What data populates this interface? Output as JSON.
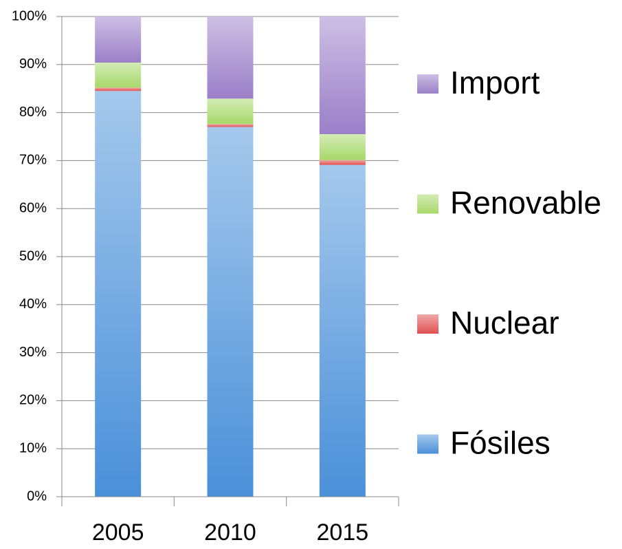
{
  "chart_data": {
    "type": "bar",
    "stacked": true,
    "categories": [
      "2005",
      "2010",
      "2015"
    ],
    "series": [
      {
        "name": "Fósiles",
        "color": "#4a90d9",
        "values": [
          84.5,
          77,
          69.1
        ]
      },
      {
        "name": "Nuclear",
        "color": "#e05050",
        "values": [
          0.7,
          0.6,
          1.0
        ]
      },
      {
        "name": "Renovable",
        "color": "#a8d86a",
        "values": [
          5.2,
          5.3,
          5.4
        ]
      },
      {
        "name": "Import",
        "color": "#9b7fc8",
        "values": [
          9.6,
          17.1,
          24.5
        ]
      }
    ],
    "ylim": [
      0,
      100
    ],
    "yticks": [
      {
        "value": 0,
        "label": "0%"
      },
      {
        "value": 10,
        "label": "10%"
      },
      {
        "value": 20,
        "label": "20%"
      },
      {
        "value": 30,
        "label": "30%"
      },
      {
        "value": 40,
        "label": "40%"
      },
      {
        "value": 50,
        "label": "50%"
      },
      {
        "value": 60,
        "label": "60%"
      },
      {
        "value": 70,
        "label": "70%"
      },
      {
        "value": 80,
        "label": "80%"
      },
      {
        "value": 90,
        "label": "90%"
      },
      {
        "value": 100,
        "label": "100%"
      }
    ],
    "grid": true,
    "legend": "right"
  }
}
